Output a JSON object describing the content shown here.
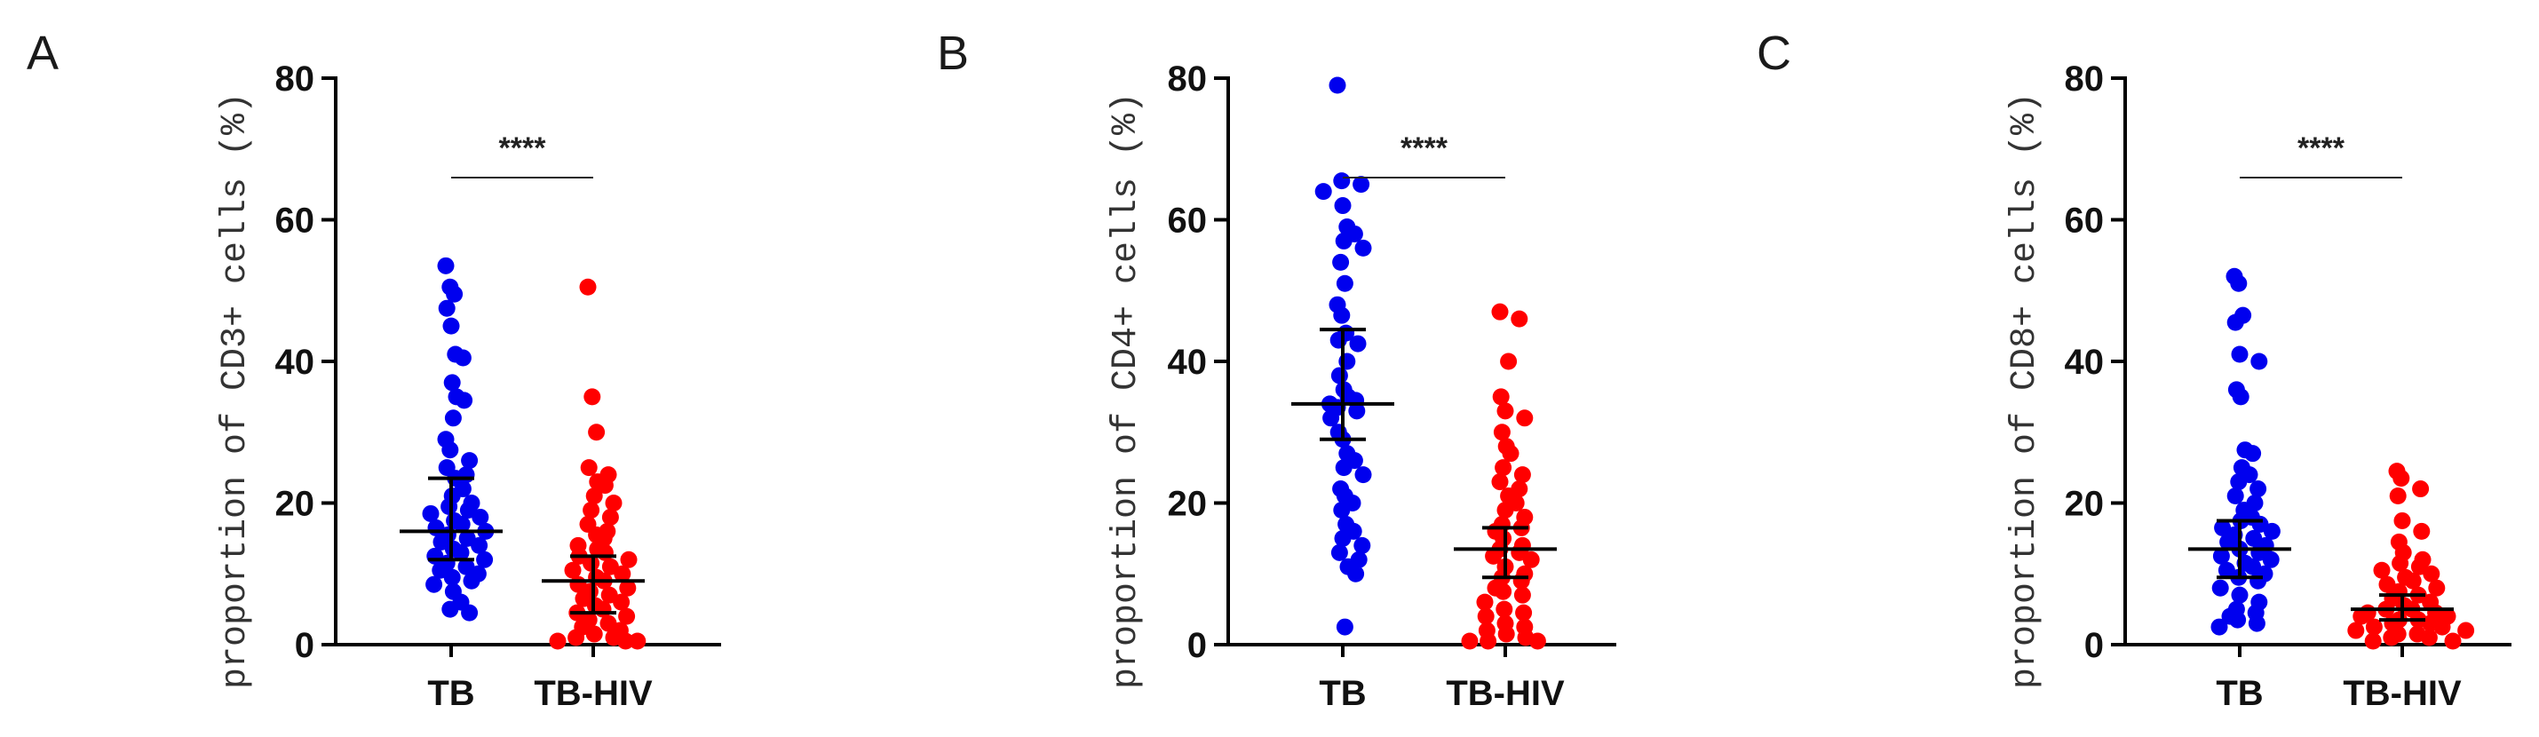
{
  "colors": {
    "TB": "#0000ee",
    "TB-HIV": "#ff0000",
    "axis": "#000000"
  },
  "chart_data": [
    {
      "type": "scatter",
      "panel": "A",
      "ylabel": "proportion of CD3+ cells (%)",
      "ylim": [
        0,
        80
      ],
      "yticks": [
        0,
        20,
        40,
        60,
        80
      ],
      "categories": [
        "TB",
        "TB-HIV"
      ],
      "significance": "****",
      "series": [
        {
          "name": "TB",
          "color": "#0000ee",
          "median": 16,
          "q1": 12,
          "q3": 23.5,
          "values": [
            53.5,
            50.5,
            49.5,
            47.5,
            45,
            41,
            40.5,
            37,
            35,
            34.5,
            32,
            29,
            27.5,
            26,
            25,
            24,
            23.5,
            22,
            21,
            20,
            19.5,
            19,
            18.5,
            18,
            17.5,
            17,
            16.5,
            16,
            15.5,
            15,
            14.5,
            14,
            13.5,
            13,
            12.5,
            12,
            11.5,
            11,
            10.5,
            10,
            9.5,
            9,
            8.5,
            7.5,
            6,
            5,
            4.5
          ]
        },
        {
          "name": "TB-HIV",
          "color": "#ff0000",
          "median": 9,
          "q1": 4.5,
          "q3": 12.5,
          "values": [
            50.5,
            35,
            30,
            25,
            24,
            23,
            22.5,
            21,
            20,
            19,
            18,
            17,
            16,
            15.5,
            15,
            14,
            13.5,
            13,
            12.5,
            12,
            11.5,
            11,
            10.5,
            10,
            9.5,
            9,
            8.5,
            8,
            7.5,
            7,
            6.5,
            6,
            5.5,
            5,
            4.5,
            4,
            3.5,
            3,
            2.5,
            2,
            1.5,
            1,
            1,
            0.5,
            0.5,
            0.5
          ]
        }
      ]
    },
    {
      "type": "scatter",
      "panel": "B",
      "ylabel": "proportion of CD4+ cells (%)",
      "ylim": [
        0,
        80
      ],
      "yticks": [
        0,
        20,
        40,
        60,
        80
      ],
      "categories": [
        "TB",
        "TB-HIV"
      ],
      "significance": "****",
      "series": [
        {
          "name": "TB",
          "color": "#0000ee",
          "median": 34,
          "q1": 29,
          "q3": 44.5,
          "values": [
            79,
            65.5,
            65,
            64,
            62,
            59,
            58,
            57,
            56,
            54,
            51,
            48,
            46.5,
            44,
            43,
            42.5,
            40,
            38,
            36,
            35,
            34.5,
            34,
            33.5,
            33,
            32,
            30,
            29,
            27,
            26,
            25,
            24,
            22,
            21,
            20,
            19,
            17,
            16,
            15,
            14,
            13,
            12,
            11,
            10,
            2.5
          ]
        },
        {
          "name": "TB-HIV",
          "color": "#ff0000",
          "median": 13.5,
          "q1": 9.5,
          "q3": 16.5,
          "values": [
            47,
            46,
            40,
            35,
            33,
            32,
            30,
            28,
            27,
            25,
            24,
            23,
            22,
            21,
            20,
            19,
            18,
            17,
            16.5,
            16,
            15,
            14,
            13.5,
            13,
            12.5,
            12,
            11,
            10,
            9.5,
            9,
            8,
            7.5,
            7,
            6,
            5,
            4.5,
            4,
            3,
            2.5,
            2,
            1.5,
            1,
            0.5,
            0.5,
            0.5
          ]
        }
      ]
    },
    {
      "type": "scatter",
      "panel": "C",
      "ylabel": "proportion of CD8+ cells (%)",
      "ylim": [
        0,
        80
      ],
      "yticks": [
        0,
        20,
        40,
        60,
        80
      ],
      "categories": [
        "TB",
        "TB-HIV"
      ],
      "significance": "****",
      "series": [
        {
          "name": "TB",
          "color": "#0000ee",
          "median": 13.5,
          "q1": 9.5,
          "q3": 17.5,
          "values": [
            52,
            51,
            46.5,
            45.5,
            41,
            40,
            36,
            35,
            27.5,
            27,
            25,
            24,
            23,
            22,
            21,
            20,
            19,
            18,
            17.5,
            17,
            16.5,
            16,
            15.5,
            15,
            14.5,
            14,
            13.5,
            13,
            12.5,
            12,
            11.5,
            11,
            10.5,
            10,
            9.5,
            9,
            8,
            7,
            6,
            5,
            4.5,
            4,
            3.5,
            3,
            2.5
          ]
        },
        {
          "name": "TB-HIV",
          "color": "#ff0000",
          "median": 5,
          "q1": 3.5,
          "q3": 7,
          "values": [
            24.5,
            23.5,
            22,
            21,
            17.5,
            16,
            14.5,
            13,
            12,
            11.5,
            11,
            10.5,
            10,
            9.5,
            9,
            8.5,
            8,
            7.5,
            7,
            6.5,
            6,
            5.5,
            5,
            5,
            4.5,
            4.5,
            4,
            4,
            3.5,
            3.5,
            3,
            3,
            2.5,
            2.5,
            2,
            2,
            1.5,
            1.5,
            1,
            1,
            0.5,
            0.5
          ]
        }
      ]
    }
  ]
}
